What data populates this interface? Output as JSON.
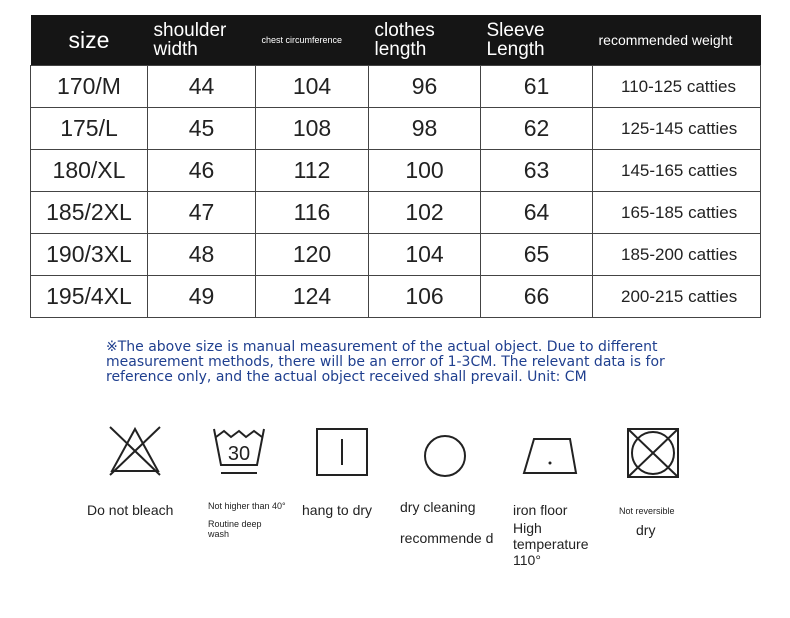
{
  "table": {
    "headers": [
      "size",
      "shoulder width",
      "chest circumference",
      "clothes length",
      "Sleeve Length",
      "recommended weight"
    ],
    "rows": [
      [
        "170/M",
        "44",
        "104",
        "96",
        "61",
        "110-125 catties"
      ],
      [
        "175/L",
        "45",
        "108",
        "98",
        "62",
        "125-145 catties"
      ],
      [
        "180/XL",
        "46",
        "112",
        "100",
        "63",
        "145-165 catties"
      ],
      [
        "185/2XL",
        "47",
        "116",
        "102",
        "64",
        "165-185 catties"
      ],
      [
        "190/3XL",
        "48",
        "120",
        "104",
        "65",
        "185-200 catties"
      ],
      [
        "195/4XL",
        "49",
        "124",
        "106",
        "66",
        "200-215 catties"
      ]
    ]
  },
  "note": "※The above size is manual measurement of the actual object. Due to different measurement methods, there will be an error of 1-3CM. The relevant data is for reference only, and the actual object received shall prevail. Unit: CM",
  "care": {
    "bleach": "Do not bleach",
    "wash_1": "Not higher than 40°",
    "wash_2": "Routine deep wash",
    "wash_temp": "30",
    "hang": "hang to dry",
    "dry_1": "dry cleaning",
    "dry_2": "recommende d",
    "iron_1": "iron floor",
    "iron_2": "High temperature 110°",
    "tumble_1": "Not reversible",
    "tumble_2": "dry"
  },
  "colors": {
    "header_bg": "#151515",
    "note": "#1f3f8f"
  }
}
